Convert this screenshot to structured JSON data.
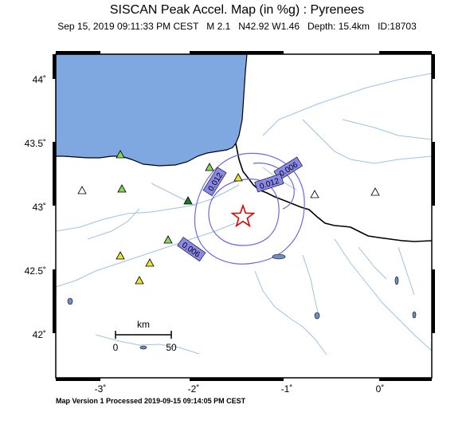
{
  "header": {
    "title": "SISCAN Peak Accel. Map (in %g) : Pyrenees",
    "date": "Sep 15, 2019 09:11:33 PM CEST",
    "magnitude": "M 2.1",
    "coords": "N42.92 W1.46",
    "depth": "Depth: 15.4km",
    "event_id": "ID:18703"
  },
  "map": {
    "lat_ticks": [
      "44˚",
      "43.5˚",
      "43˚",
      "42.5˚",
      "42˚"
    ],
    "lon_ticks": [
      "-3˚",
      "-2˚",
      "-1˚",
      "0˚"
    ],
    "contour_labels": [
      "0.006",
      "0.012",
      "0.012",
      "0.006"
    ],
    "scale_bar": {
      "unit": "km",
      "start": "0",
      "end": "50"
    },
    "colors": {
      "sea": "#7fa7e0",
      "contour": "#6d6ae0",
      "label_box": "#8a88e8",
      "river": "#9ec2e6",
      "epicenter": "#e00000"
    },
    "stations": [
      {
        "type": "light-green",
        "color": "#88d65a"
      },
      {
        "type": "dark-green",
        "color": "#1a7a1a"
      },
      {
        "type": "yellow",
        "color": "#f0e030"
      },
      {
        "type": "white",
        "color": "#ffffff"
      }
    ]
  },
  "footer": {
    "text": "Map Version 1 Processed 2019-09-15 09:14:05 PM CEST"
  }
}
